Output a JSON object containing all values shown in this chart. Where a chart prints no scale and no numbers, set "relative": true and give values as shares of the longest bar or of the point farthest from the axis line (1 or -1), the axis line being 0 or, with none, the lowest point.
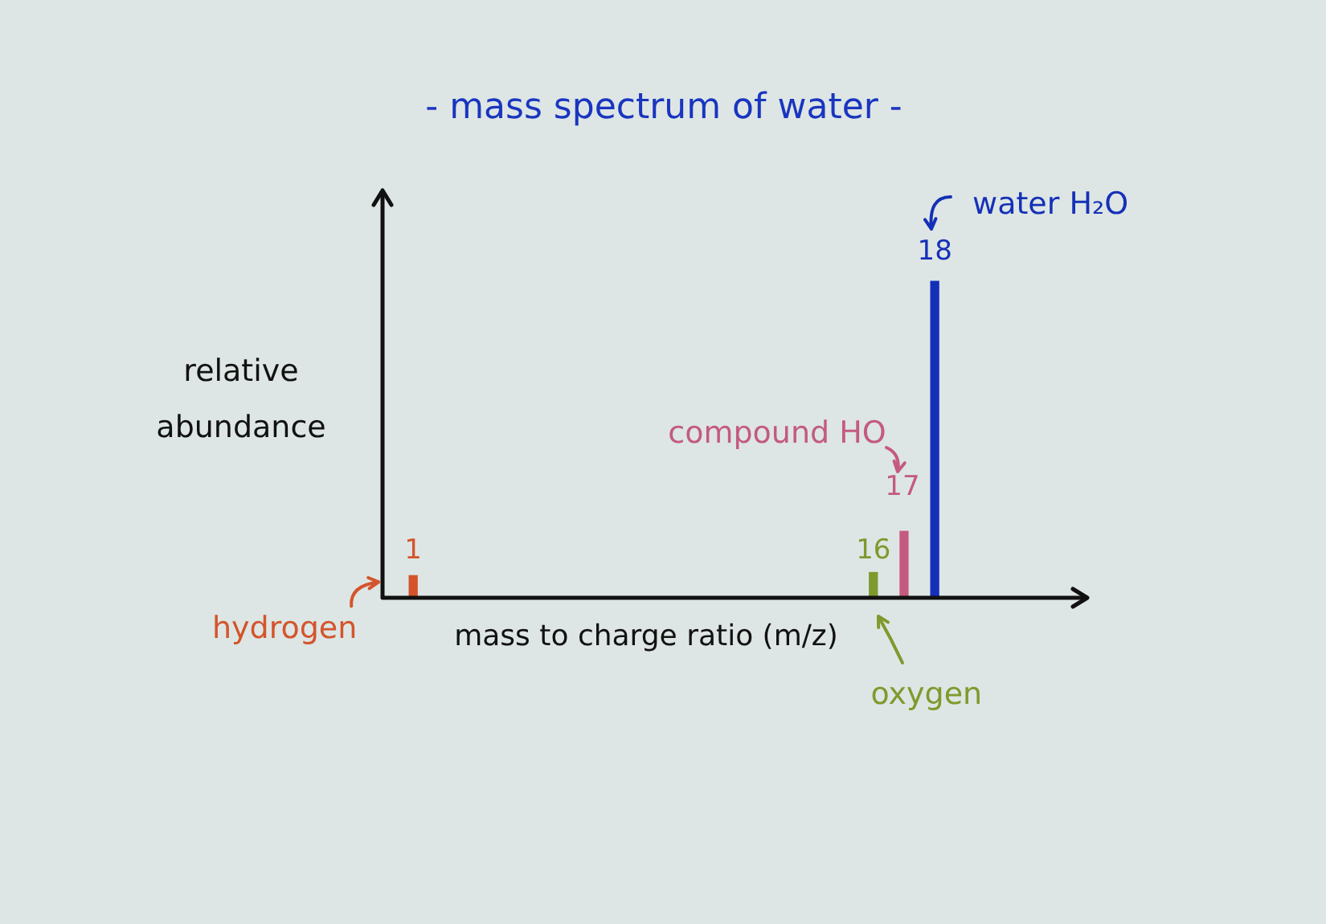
{
  "chart_data": {
    "type": "bar",
    "title": "- mass spectrum of water -",
    "xlabel": "mass to charge ratio (m/z)",
    "ylabel": "relative abundance",
    "x": [
      1,
      16,
      17,
      18
    ],
    "values": [
      0.07,
      0.08,
      0.21,
      1
    ],
    "colors": [
      "#d4542c",
      "#7f9a2c",
      "#c45a80",
      "#1530b8"
    ],
    "relative": true,
    "xlim": [
      0,
      23
    ],
    "xticks": [
      1,
      16
    ],
    "tick_labels": "x",
    "annotations": [
      {
        "text": "17",
        "x": 17,
        "y": 0.21
      },
      {
        "text": "18",
        "x": 18,
        "y": 1
      },
      {
        "text": "hydrogen",
        "x": 1,
        "y": 0.07
      },
      {
        "text": "oxygen",
        "x": 16,
        "y": 0
      },
      {
        "text": "compound HO",
        "x": 17,
        "y": 0.21
      },
      {
        "text": "water H₂O",
        "x": 18,
        "y": 1
      }
    ]
  }
}
